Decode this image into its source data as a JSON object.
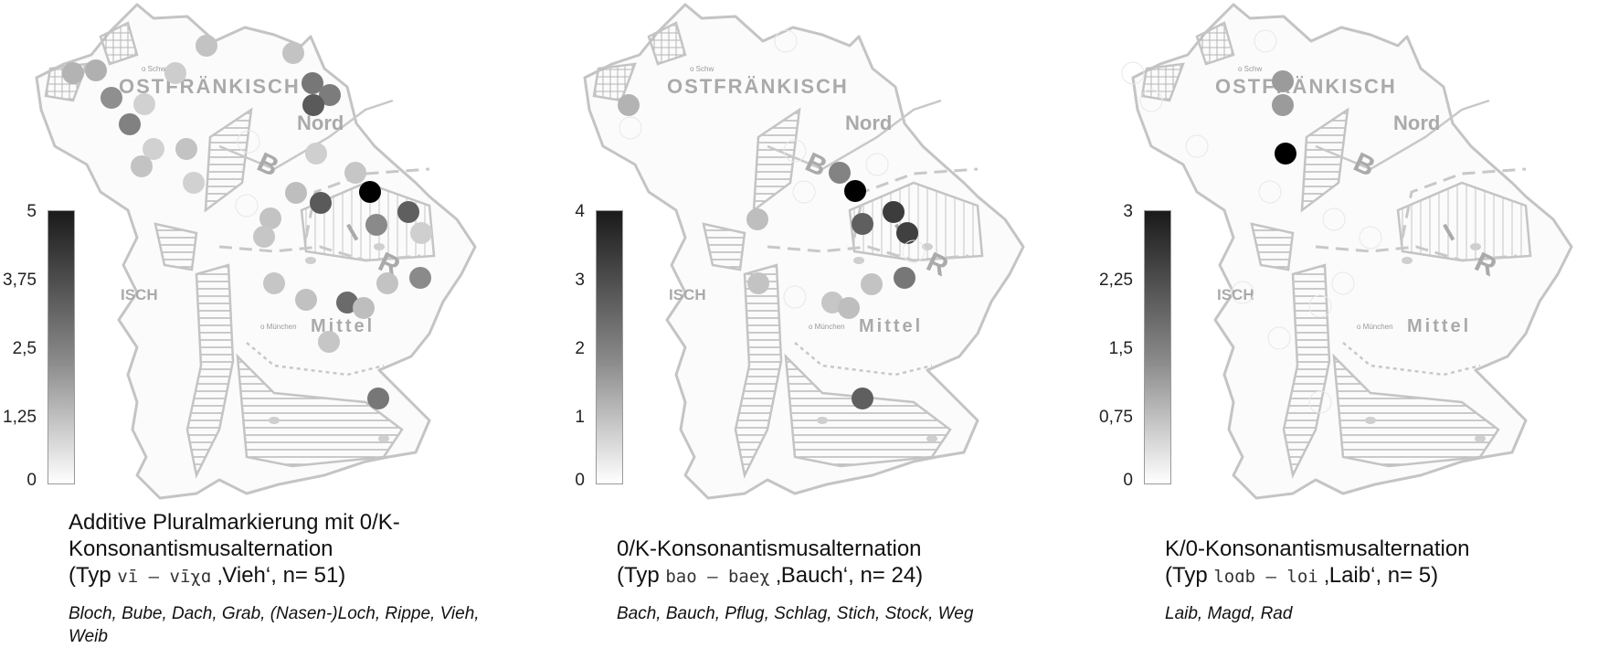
{
  "panels": [
    {
      "legend_ticks": [
        "5",
        "3,75",
        "2,5",
        "1,25",
        "0"
      ],
      "legend_max": 5,
      "title_line1": "Additive Pluralmarkierung mit 0/K-",
      "title_line2": "Konsonantismusalternation",
      "type_prefix": "(Typ ",
      "type_ipa": "vī – vīχɑ",
      "type_suffix": " ‚Vieh‘, n= 51)",
      "words": "Bloch, Bube, Dach, Grab, (Nasen-)Loch, Rippe, Vieh, Weib"
    },
    {
      "legend_ticks": [
        "4",
        "3",
        "2",
        "1",
        "0"
      ],
      "legend_max": 4,
      "title_line1": "0/K-Konsonantismusalternation",
      "title_line2": "",
      "type_prefix": "(Typ ",
      "type_ipa": "bao – baeχ",
      "type_suffix": " ‚Bauch‘, n= 24)",
      "words": "Bach, Bauch, Pflug, Schlag, Stich, Stock, Weg"
    },
    {
      "legend_ticks": [
        "3",
        "2,25",
        "1,5",
        "0,75",
        "0"
      ],
      "legend_max": 3,
      "title_line1": "K/0-Konsonantismusalternation",
      "title_line2": "",
      "type_prefix": "(Typ ",
      "type_ipa": "loɑb – loi",
      "type_suffix": " ‚Laib‘, n= 5)",
      "words": "Laib, Magd, Rad"
    }
  ],
  "map_labels": {
    "ostfraenkisch": "OSTFRÄNKISCH",
    "nord": "Nord",
    "mittel": "Mittel",
    "isch": "ISCH",
    "schweinfurt": "o Schw",
    "muenchen": "o München",
    "b": "B",
    "i": "I",
    "r": "R"
  },
  "colors": {
    "background": "#ffffff",
    "map_outline": "#c4c4c4",
    "map_label": "#aaaaaa",
    "legend_dark": "#1a1a1a",
    "legend_light": "#ffffff"
  }
}
